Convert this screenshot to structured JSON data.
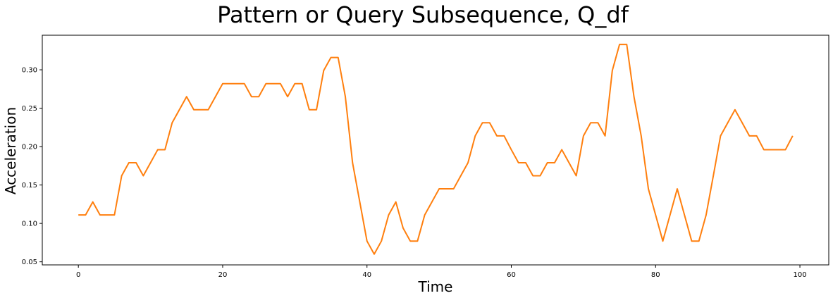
{
  "chart_data": {
    "type": "line",
    "title": "Pattern or Query Subsequence, Q_df",
    "xlabel": "Time",
    "ylabel": "Acceleration",
    "xlim": [
      -5,
      104
    ],
    "ylim": [
      0.046,
      0.345
    ],
    "xticks": [
      0,
      20,
      40,
      60,
      80,
      100
    ],
    "yticks": [
      0.05,
      0.1,
      0.15,
      0.2,
      0.25,
      0.3
    ],
    "ytick_labels": [
      "0.05",
      "0.10",
      "0.15",
      "0.20",
      "0.25",
      "0.30"
    ],
    "xtick_labels": [
      "0",
      "20",
      "40",
      "60",
      "80",
      "100"
    ],
    "grid": false,
    "series": [
      {
        "color": "#ff7f0e",
        "x": [
          0,
          1,
          2,
          3,
          4,
          5,
          6,
          7,
          8,
          9,
          10,
          11,
          12,
          13,
          14,
          15,
          16,
          17,
          18,
          19,
          20,
          21,
          22,
          23,
          24,
          25,
          26,
          27,
          28,
          29,
          30,
          31,
          32,
          33,
          34,
          35,
          36,
          37,
          38,
          39,
          40,
          41,
          42,
          43,
          44,
          45,
          46,
          47,
          48,
          49,
          50,
          51,
          52,
          53,
          54,
          55,
          56,
          57,
          58,
          59,
          60,
          61,
          62,
          63,
          64,
          65,
          66,
          67,
          68,
          69,
          70,
          71,
          72,
          73,
          74,
          75,
          76,
          77,
          78,
          79,
          80,
          81,
          82,
          83,
          84,
          85,
          86,
          87,
          88,
          89,
          90,
          91,
          92,
          93,
          94,
          95,
          96,
          97,
          98,
          99
        ],
        "y": [
          0.111,
          0.111,
          0.128,
          0.111,
          0.111,
          0.111,
          0.162,
          0.179,
          0.179,
          0.162,
          0.179,
          0.196,
          0.196,
          0.231,
          0.248,
          0.265,
          0.248,
          0.248,
          0.248,
          0.265,
          0.282,
          0.282,
          0.282,
          0.282,
          0.265,
          0.265,
          0.282,
          0.282,
          0.282,
          0.265,
          0.282,
          0.282,
          0.248,
          0.248,
          0.299,
          0.316,
          0.316,
          0.265,
          0.179,
          0.128,
          0.077,
          0.06,
          0.077,
          0.111,
          0.128,
          0.094,
          0.077,
          0.077,
          0.111,
          0.128,
          0.145,
          0.145,
          0.145,
          0.162,
          0.179,
          0.214,
          0.231,
          0.231,
          0.214,
          0.214,
          0.196,
          0.179,
          0.179,
          0.162,
          0.162,
          0.179,
          0.179,
          0.196,
          0.179,
          0.162,
          0.214,
          0.231,
          0.231,
          0.214,
          0.299,
          0.333,
          0.333,
          0.265,
          0.214,
          0.145,
          0.111,
          0.077,
          0.111,
          0.145,
          0.111,
          0.077,
          0.077,
          0.111,
          0.162,
          0.214,
          0.231,
          0.248,
          0.231,
          0.214,
          0.214,
          0.196,
          0.196,
          0.196,
          0.196,
          0.214
        ]
      }
    ]
  }
}
